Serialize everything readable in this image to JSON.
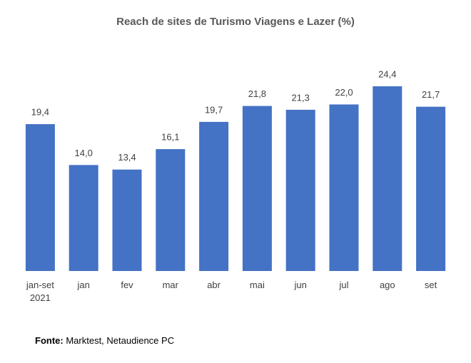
{
  "chart_data": {
    "type": "bar",
    "title": "Reach de sites de Turismo Viagens e Lazer (%)",
    "categories": [
      "jan-set 2021",
      "jan",
      "fev",
      "mar",
      "abr",
      "mai",
      "jun",
      "jul",
      "ago",
      "set"
    ],
    "values": [
      19.4,
      14.0,
      13.4,
      16.1,
      19.7,
      21.8,
      21.3,
      22.0,
      24.4,
      21.7
    ],
    "value_labels": [
      "19,4",
      "14,0",
      "13,4",
      "16,1",
      "19,7",
      "21,8",
      "21,3",
      "22,0",
      "24,4",
      "21,7"
    ],
    "color": "#4472c4"
  },
  "source": {
    "label": "Fonte:",
    "text": "Marktest, Netaudience PC"
  }
}
